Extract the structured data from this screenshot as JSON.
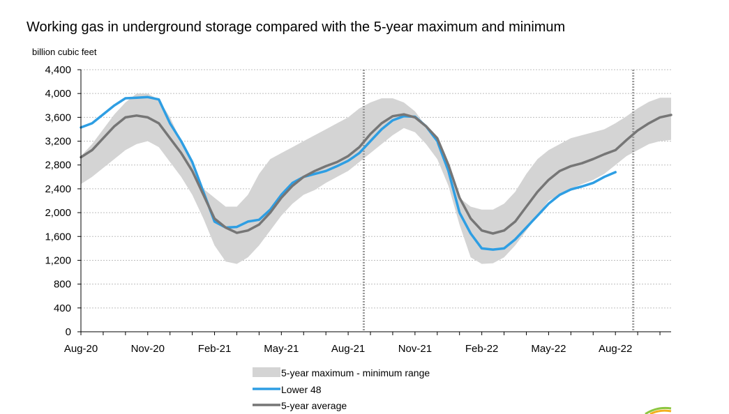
{
  "chart_data": {
    "type": "line",
    "title": "Working gas in underground  storage compared with the 5-year maximum  and minimum",
    "ylabel": "billion cubic feet",
    "ylim": [
      0,
      4400
    ],
    "yticks": [
      0,
      400,
      800,
      1200,
      1600,
      2000,
      2400,
      2800,
      3200,
      3600,
      4000,
      4400
    ],
    "ytick_labels": [
      "0",
      "400",
      "800",
      "1,200",
      "1,600",
      "2,000",
      "2,400",
      "2,800",
      "3,200",
      "3,600",
      "4,000",
      "4,400"
    ],
    "xlim": [
      0,
      26.5
    ],
    "xticks": [
      0,
      3,
      6,
      9,
      12,
      15,
      18,
      21,
      24
    ],
    "xtick_labels": [
      "Aug-20",
      "Nov-20",
      "Feb-21",
      "May-21",
      "Aug-21",
      "Nov-21",
      "Feb-22",
      "May-22",
      "Aug-22"
    ],
    "vertical_markers": [
      12.7,
      24.8
    ],
    "grid": "horizontal",
    "legend_position": "bottom-center",
    "x": [
      0,
      0.5,
      1,
      1.5,
      2,
      2.5,
      3,
      3.5,
      4,
      4.5,
      5,
      5.5,
      6,
      6.5,
      7,
      7.5,
      8,
      8.5,
      9,
      9.5,
      10,
      10.5,
      11,
      11.5,
      12,
      12.5,
      13,
      13.5,
      14,
      14.5,
      15,
      15.5,
      16,
      16.5,
      17,
      17.5,
      18,
      18.5,
      19,
      19.5,
      20,
      20.5,
      21,
      21.5,
      22,
      22.5,
      23,
      23.5,
      24,
      24.5,
      25,
      25.5,
      26,
      26.5
    ],
    "series": [
      {
        "name": "5-year maximum - minimum range",
        "kind": "band",
        "color": "#d4d4d4",
        "upper": [
          2950,
          3150,
          3400,
          3650,
          3850,
          4000,
          4000,
          3900,
          3600,
          3200,
          2800,
          2400,
          2250,
          2100,
          2100,
          2300,
          2650,
          2900,
          3000,
          3100,
          3200,
          3300,
          3400,
          3500,
          3600,
          3750,
          3850,
          3920,
          3920,
          3850,
          3700,
          3450,
          3150,
          2700,
          2250,
          2100,
          2050,
          2050,
          2150,
          2350,
          2650,
          2900,
          3050,
          3150,
          3250,
          3300,
          3350,
          3400,
          3500,
          3620,
          3750,
          3860,
          3930,
          3930
        ],
        "lower": [
          2480,
          2600,
          2750,
          2900,
          3050,
          3150,
          3200,
          3100,
          2850,
          2600,
          2300,
          1900,
          1450,
          1180,
          1140,
          1250,
          1450,
          1700,
          1950,
          2150,
          2300,
          2380,
          2500,
          2600,
          2700,
          2850,
          3000,
          3150,
          3300,
          3420,
          3350,
          3150,
          2900,
          2450,
          1800,
          1250,
          1140,
          1150,
          1250,
          1450,
          1700,
          1950,
          2200,
          2300,
          2400,
          2480,
          2550,
          2650,
          2800,
          2950,
          3050,
          3150,
          3200,
          3220
        ]
      },
      {
        "name": "Lower 48",
        "kind": "line",
        "color": "#2e9ee3",
        "values": [
          3430,
          3500,
          3650,
          3800,
          3920,
          3930,
          3940,
          3900,
          3500,
          3200,
          2850,
          2350,
          1850,
          1750,
          1760,
          1850,
          1880,
          2050,
          2300,
          2500,
          2600,
          2650,
          2700,
          2780,
          2870,
          3000,
          3200,
          3400,
          3550,
          3620,
          3610,
          3450,
          3200,
          2700,
          2000,
          1650,
          1400,
          1380,
          1400,
          1550,
          1750,
          1950,
          2150,
          2300,
          2390,
          2440,
          2500,
          2600,
          2680,
          null,
          null,
          null,
          null,
          null
        ]
      },
      {
        "name": "5-year average",
        "kind": "line",
        "color": "#767676",
        "values": [
          2930,
          3050,
          3250,
          3450,
          3600,
          3630,
          3600,
          3500,
          3250,
          3000,
          2700,
          2300,
          1900,
          1750,
          1660,
          1700,
          1800,
          2000,
          2250,
          2450,
          2600,
          2700,
          2780,
          2850,
          2950,
          3100,
          3320,
          3500,
          3620,
          3650,
          3600,
          3450,
          3250,
          2800,
          2250,
          1900,
          1700,
          1650,
          1700,
          1850,
          2100,
          2350,
          2550,
          2700,
          2780,
          2830,
          2900,
          2980,
          3050,
          3220,
          3380,
          3500,
          3600,
          3640
        ]
      }
    ]
  }
}
